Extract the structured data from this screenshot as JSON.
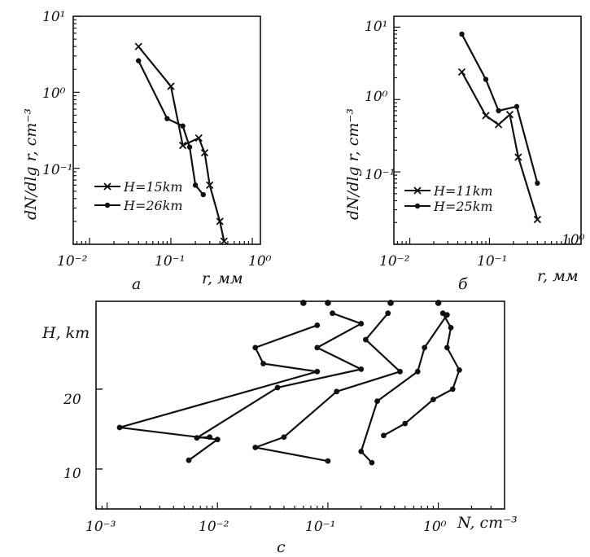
{
  "chart_data": [
    {
      "id": "a",
      "type": "line",
      "panel_label": "a",
      "xlabel": "r, мм",
      "ylabel": "dN/dlg r, cm⁻³",
      "xscale": "log",
      "yscale": "log",
      "xlim": [
        0.01,
        1
      ],
      "ylim": [
        0.01,
        10
      ],
      "xticks": [
        "10⁻²",
        "10⁻¹",
        "10⁰"
      ],
      "yticks": [
        "10¹",
        "10⁰",
        "10⁻¹"
      ],
      "legend_placement": "lower-left",
      "series": [
        {
          "name": "H=15km",
          "marker": "x",
          "x": [
            0.04,
            0.1,
            0.14,
            0.22,
            0.26,
            0.3,
            0.4,
            0.45
          ],
          "y": [
            4,
            1.2,
            0.2,
            0.25,
            0.16,
            0.06,
            0.02,
            0.011
          ]
        },
        {
          "name": "H=26km",
          "marker": "dot",
          "x": [
            0.04,
            0.09,
            0.14,
            0.17,
            0.2,
            0.25
          ],
          "y": [
            2.6,
            0.45,
            0.36,
            0.19,
            0.06,
            0.045
          ]
        }
      ]
    },
    {
      "id": "b",
      "type": "line",
      "panel_label": "б",
      "xlabel": "r, мм",
      "ylabel": "dN/dlg r, cm⁻³",
      "xscale": "log",
      "yscale": "log",
      "xlim": [
        0.01,
        1
      ],
      "ylim": [
        0.01,
        10
      ],
      "xticks": [
        "10⁻²",
        "10⁻¹",
        "10⁰"
      ],
      "yticks": [
        "10¹",
        "10⁰",
        "10⁻¹"
      ],
      "legend_placement": "lower-left",
      "series": [
        {
          "name": "H=11km",
          "marker": "x",
          "x": [
            0.045,
            0.09,
            0.13,
            0.18,
            0.23,
            0.4
          ],
          "y": [
            2.4,
            0.6,
            0.45,
            0.62,
            0.16,
            0.022
          ]
        },
        {
          "name": "H=25km",
          "marker": "dot",
          "x": [
            0.045,
            0.09,
            0.13,
            0.22,
            0.4
          ],
          "y": [
            8,
            1.9,
            0.7,
            0.8,
            0.07
          ]
        }
      ]
    },
    {
      "id": "c",
      "type": "line",
      "panel_label": "c",
      "xlabel": "N, cm⁻³",
      "ylabel": "H, km",
      "xscale": "log",
      "xlim": [
        0.001,
        10
      ],
      "ylim": [
        5,
        31
      ],
      "xticks": [
        "10⁻³",
        "10⁻²",
        "10⁻¹",
        "10⁰"
      ],
      "yticks": [
        "10",
        "20"
      ],
      "series": [
        {
          "x": [
            0.08,
            0.022,
            0.026,
            0.08,
            0.0013,
            0.01,
            0.0055
          ],
          "y": [
            28,
            25.2,
            23.2,
            22.2,
            15.2,
            13.7,
            11.1
          ]
        },
        {
          "x": [
            0.11,
            0.2,
            0.08,
            0.2,
            0.035,
            0.0065,
            0.0085
          ],
          "y": [
            29.5,
            28.2,
            25.2,
            22.5,
            20.2,
            13.9,
            14
          ]
        },
        {
          "x": [
            0.35,
            0.22,
            0.45,
            0.12,
            0.04,
            0.022,
            0.1
          ],
          "y": [
            29.5,
            26.2,
            22.2,
            19.7,
            14,
            12.7,
            11
          ]
        },
        {
          "x": [
            1.2,
            0.75,
            0.65,
            0.28,
            0.2,
            0.25
          ],
          "y": [
            29.3,
            25.2,
            22.2,
            18.5,
            12.2,
            10.8
          ]
        },
        {
          "x": [
            1.1,
            1.3,
            1.2,
            1.55,
            1.35,
            0.9,
            0.5,
            0.32
          ],
          "y": [
            29.5,
            27.7,
            25.2,
            22.4,
            20,
            18.7,
            15.7,
            14.2
          ]
        }
      ],
      "detached_points": [
        {
          "x": 0.06,
          "y": 30.8
        },
        {
          "x": 0.1,
          "y": 30.8
        },
        {
          "x": 0.37,
          "y": 30.8
        },
        {
          "x": 1.0,
          "y": 30.8
        }
      ]
    }
  ]
}
